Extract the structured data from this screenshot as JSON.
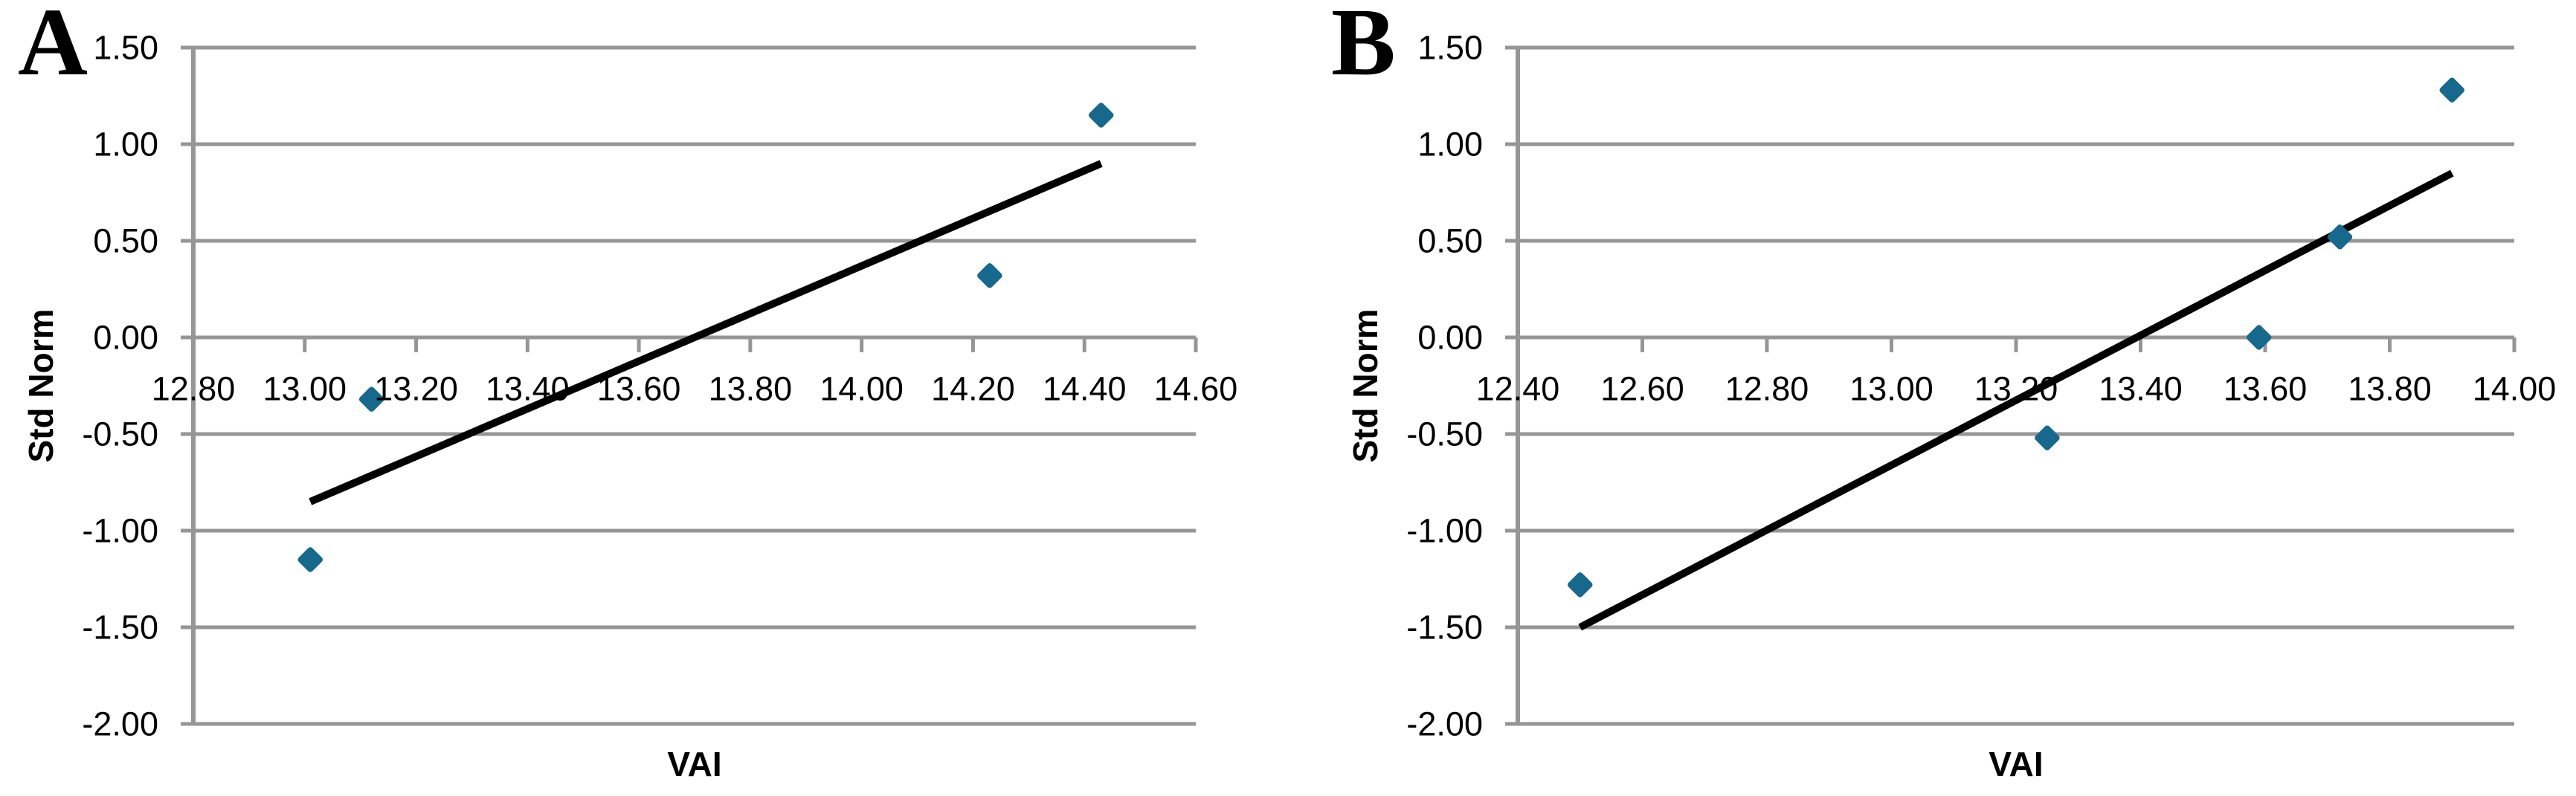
{
  "figure": {
    "background": "#FFFFFF",
    "text_color": "#000000"
  },
  "chart_data": [
    {
      "type": "scatter",
      "panel_label": "A",
      "xlabel": "VAI",
      "ylabel": "Std Norm",
      "x_range": [
        12.8,
        14.6
      ],
      "y_range": [
        -2.0,
        1.5
      ],
      "x_ticks": [
        12.8,
        13.0,
        13.2,
        13.4,
        13.6,
        13.8,
        14.0,
        14.2,
        14.4,
        14.6
      ],
      "x_tick_labels": [
        "12.80",
        "13.00",
        "13.20",
        "13.40",
        "13.60",
        "13.80",
        "14.00",
        "14.20",
        "14.40",
        "14.60"
      ],
      "y_ticks": [
        1.5,
        1.0,
        0.5,
        0.0,
        -0.5,
        -1.0,
        -1.5,
        -2.0
      ],
      "y_tick_labels": [
        "1.50",
        "1.00",
        "0.50",
        "0.00",
        "-0.50",
        "-1.00",
        "-1.50",
        "-2.00"
      ],
      "points": [
        [
          13.01,
          -1.15
        ],
        [
          13.12,
          -0.32
        ],
        [
          14.23,
          0.32
        ],
        [
          14.43,
          1.15
        ]
      ],
      "trend_line": [
        [
          13.01,
          -0.85
        ],
        [
          14.43,
          0.9
        ]
      ],
      "marker": "diamond",
      "marker_color": "#17688D",
      "trend_line_color": "#000000",
      "gridline_color": "#969696",
      "grid": "horizontal",
      "legend": "none"
    },
    {
      "type": "scatter",
      "panel_label": "B",
      "xlabel": "VAI",
      "ylabel": "Std Norm",
      "x_range": [
        12.4,
        14.0
      ],
      "y_range": [
        -2.0,
        1.5
      ],
      "x_ticks": [
        12.4,
        12.6,
        12.8,
        13.0,
        13.2,
        13.4,
        13.6,
        13.8,
        14.0
      ],
      "x_tick_labels": [
        "12.40",
        "12.60",
        "12.80",
        "13.00",
        "13.20",
        "13.40",
        "13.60",
        "13.80",
        "14.00"
      ],
      "y_ticks": [
        1.5,
        1.0,
        0.5,
        0.0,
        -0.5,
        -1.0,
        -1.5,
        -2.0
      ],
      "y_tick_labels": [
        "1.50",
        "1.00",
        "0.50",
        "0.00",
        "-0.50",
        "-1.00",
        "-1.50",
        "-2.00"
      ],
      "points": [
        [
          12.5,
          -1.28
        ],
        [
          13.25,
          -0.52
        ],
        [
          13.59,
          0.0
        ],
        [
          13.72,
          0.52
        ],
        [
          13.9,
          1.28
        ]
      ],
      "trend_line": [
        [
          12.5,
          -1.5
        ],
        [
          13.9,
          0.85
        ]
      ],
      "marker": "diamond",
      "marker_color": "#17688D",
      "trend_line_color": "#000000",
      "gridline_color": "#969696",
      "grid": "horizontal",
      "legend": "none"
    }
  ]
}
